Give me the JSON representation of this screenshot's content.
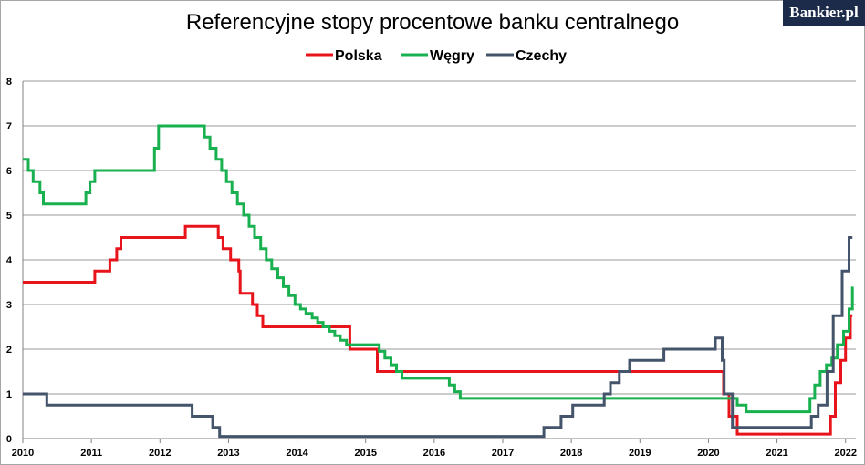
{
  "brand": {
    "logo_text": "Bankier.pl"
  },
  "chart_data": {
    "type": "line",
    "title": "Referencyjne stopy procentowe banku centralnego",
    "xlabel": "",
    "ylabel": "",
    "legend": "top",
    "grid": true,
    "xlim": [
      2010,
      2022.15
    ],
    "ylim": [
      0,
      8
    ],
    "xticks": [
      2010,
      2011,
      2012,
      2013,
      2014,
      2015,
      2016,
      2017,
      2018,
      2019,
      2020,
      2021,
      2022
    ],
    "yticks": [
      0,
      1,
      2,
      3,
      4,
      5,
      6,
      7,
      8
    ],
    "series": [
      {
        "name": "Polska",
        "color": "#e8141b",
        "step": true,
        "points": [
          [
            2010.0,
            3.5
          ],
          [
            2011.05,
            3.75
          ],
          [
            2011.27,
            4.0
          ],
          [
            2011.37,
            4.25
          ],
          [
            2011.43,
            4.5
          ],
          [
            2012.37,
            4.75
          ],
          [
            2012.85,
            4.5
          ],
          [
            2012.92,
            4.25
          ],
          [
            2013.03,
            4.0
          ],
          [
            2013.15,
            3.75
          ],
          [
            2013.17,
            3.25
          ],
          [
            2013.35,
            3.0
          ],
          [
            2013.42,
            2.75
          ],
          [
            2013.5,
            2.5
          ],
          [
            2014.77,
            2.0
          ],
          [
            2015.17,
            1.5
          ],
          [
            2020.22,
            1.0
          ],
          [
            2020.3,
            0.5
          ],
          [
            2020.42,
            0.1
          ],
          [
            2021.78,
            0.5
          ],
          [
            2021.85,
            1.25
          ],
          [
            2021.93,
            1.75
          ],
          [
            2022.0,
            2.25
          ],
          [
            2022.07,
            2.75
          ],
          [
            2022.1,
            2.75
          ]
        ]
      },
      {
        "name": "Węgry",
        "color": "#19b150",
        "step": true,
        "points": [
          [
            2010.0,
            6.25
          ],
          [
            2010.08,
            6.0
          ],
          [
            2010.15,
            5.75
          ],
          [
            2010.25,
            5.5
          ],
          [
            2010.3,
            5.25
          ],
          [
            2010.92,
            5.5
          ],
          [
            2010.98,
            5.75
          ],
          [
            2011.05,
            6.0
          ],
          [
            2011.92,
            6.5
          ],
          [
            2011.98,
            7.0
          ],
          [
            2012.65,
            6.75
          ],
          [
            2012.73,
            6.5
          ],
          [
            2012.82,
            6.25
          ],
          [
            2012.9,
            6.0
          ],
          [
            2012.97,
            5.75
          ],
          [
            2013.05,
            5.5
          ],
          [
            2013.13,
            5.25
          ],
          [
            2013.22,
            5.0
          ],
          [
            2013.3,
            4.75
          ],
          [
            2013.38,
            4.5
          ],
          [
            2013.47,
            4.25
          ],
          [
            2013.55,
            4.0
          ],
          [
            2013.63,
            3.8
          ],
          [
            2013.72,
            3.6
          ],
          [
            2013.8,
            3.4
          ],
          [
            2013.88,
            3.2
          ],
          [
            2013.97,
            3.0
          ],
          [
            2014.05,
            2.9
          ],
          [
            2014.13,
            2.8
          ],
          [
            2014.22,
            2.7
          ],
          [
            2014.3,
            2.6
          ],
          [
            2014.38,
            2.5
          ],
          [
            2014.47,
            2.4
          ],
          [
            2014.55,
            2.3
          ],
          [
            2014.63,
            2.2
          ],
          [
            2014.72,
            2.1
          ],
          [
            2015.2,
            1.95
          ],
          [
            2015.28,
            1.8
          ],
          [
            2015.37,
            1.65
          ],
          [
            2015.45,
            1.5
          ],
          [
            2015.53,
            1.35
          ],
          [
            2016.22,
            1.2
          ],
          [
            2016.3,
            1.05
          ],
          [
            2016.38,
            0.9
          ],
          [
            2020.42,
            0.75
          ],
          [
            2020.55,
            0.6
          ],
          [
            2021.48,
            0.9
          ],
          [
            2021.55,
            1.2
          ],
          [
            2021.63,
            1.5
          ],
          [
            2021.72,
            1.65
          ],
          [
            2021.8,
            1.8
          ],
          [
            2021.88,
            2.1
          ],
          [
            2021.97,
            2.4
          ],
          [
            2022.05,
            2.9
          ],
          [
            2022.1,
            3.4
          ]
        ]
      },
      {
        "name": "Czechy",
        "color": "#44546a",
        "step": true,
        "points": [
          [
            2010.0,
            1.0
          ],
          [
            2010.35,
            0.75
          ],
          [
            2012.47,
            0.5
          ],
          [
            2012.77,
            0.25
          ],
          [
            2012.87,
            0.05
          ],
          [
            2017.6,
            0.25
          ],
          [
            2017.85,
            0.5
          ],
          [
            2018.02,
            0.75
          ],
          [
            2018.48,
            1.0
          ],
          [
            2018.57,
            1.25
          ],
          [
            2018.7,
            1.5
          ],
          [
            2018.85,
            1.75
          ],
          [
            2019.35,
            2.0
          ],
          [
            2020.1,
            2.25
          ],
          [
            2020.2,
            1.75
          ],
          [
            2020.23,
            1.0
          ],
          [
            2020.35,
            0.25
          ],
          [
            2021.5,
            0.5
          ],
          [
            2021.6,
            0.75
          ],
          [
            2021.73,
            1.5
          ],
          [
            2021.82,
            2.75
          ],
          [
            2021.95,
            3.75
          ],
          [
            2022.05,
            4.5
          ],
          [
            2022.1,
            4.5
          ]
        ]
      }
    ]
  }
}
